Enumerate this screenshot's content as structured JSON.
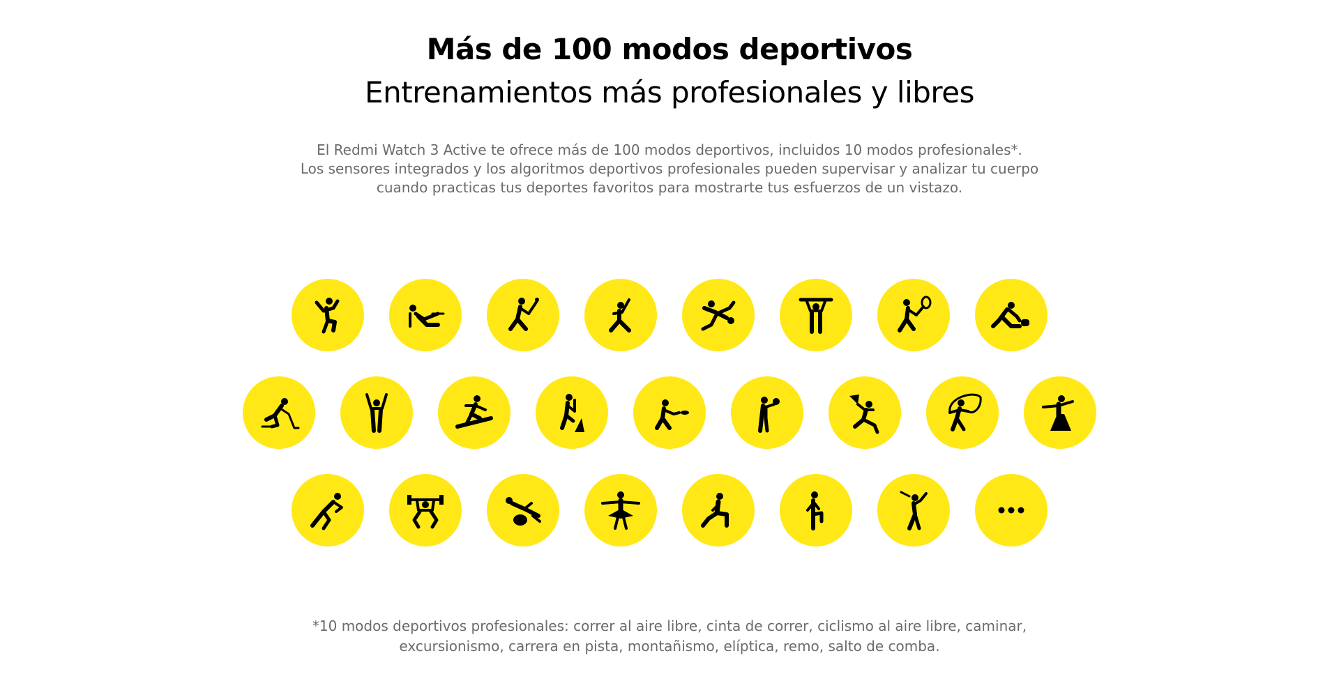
{
  "heading": {
    "title": "Más de 100 modos deportivos",
    "subtitle": "Entrenamientos más profesionales y libres"
  },
  "description": {
    "line1": "El Redmi Watch 3 Active te ofrece más de 100 modos deportivos, incluidos 10 modos profesionales*.",
    "line2": "Los sensores integrados y los algoritmos deportivos profesionales pueden supervisar y analizar tu cuerpo",
    "line3": "cuando practicas tus deportes favoritos para mostrarte tus esfuerzos de un vistazo."
  },
  "sport_icons": {
    "row1": [
      "dance-icon",
      "rowing-machine-icon",
      "cricket-icon",
      "baseball-icon",
      "bowling-icon",
      "weightlifting-icon",
      "squash-icon",
      "curling-icon"
    ],
    "row2": [
      "ice-hockey-icon",
      "gymnastics-icon",
      "snowboard-icon",
      "climbing-icon",
      "frisbee-icon",
      "boxing-icon",
      "kite-icon",
      "jump-rope-icon",
      "ballroom-dance-icon"
    ],
    "row3": [
      "running-icon",
      "strength-training-icon",
      "pilates-icon",
      "ballet-icon",
      "lunge-icon",
      "stepper-icon",
      "golf-icon",
      "more-dots-icon"
    ]
  },
  "colors": {
    "icon_background": "#ffe815",
    "icon_glyph": "#000000",
    "body_text": "#6b6b6b"
  },
  "footnote": {
    "line1": "*10 modos deportivos profesionales: correr al aire libre, cinta de correr, ciclismo al aire libre, caminar,",
    "line2": "excursionismo, carrera en pista, montañismo, elíptica, remo, salto de comba."
  }
}
